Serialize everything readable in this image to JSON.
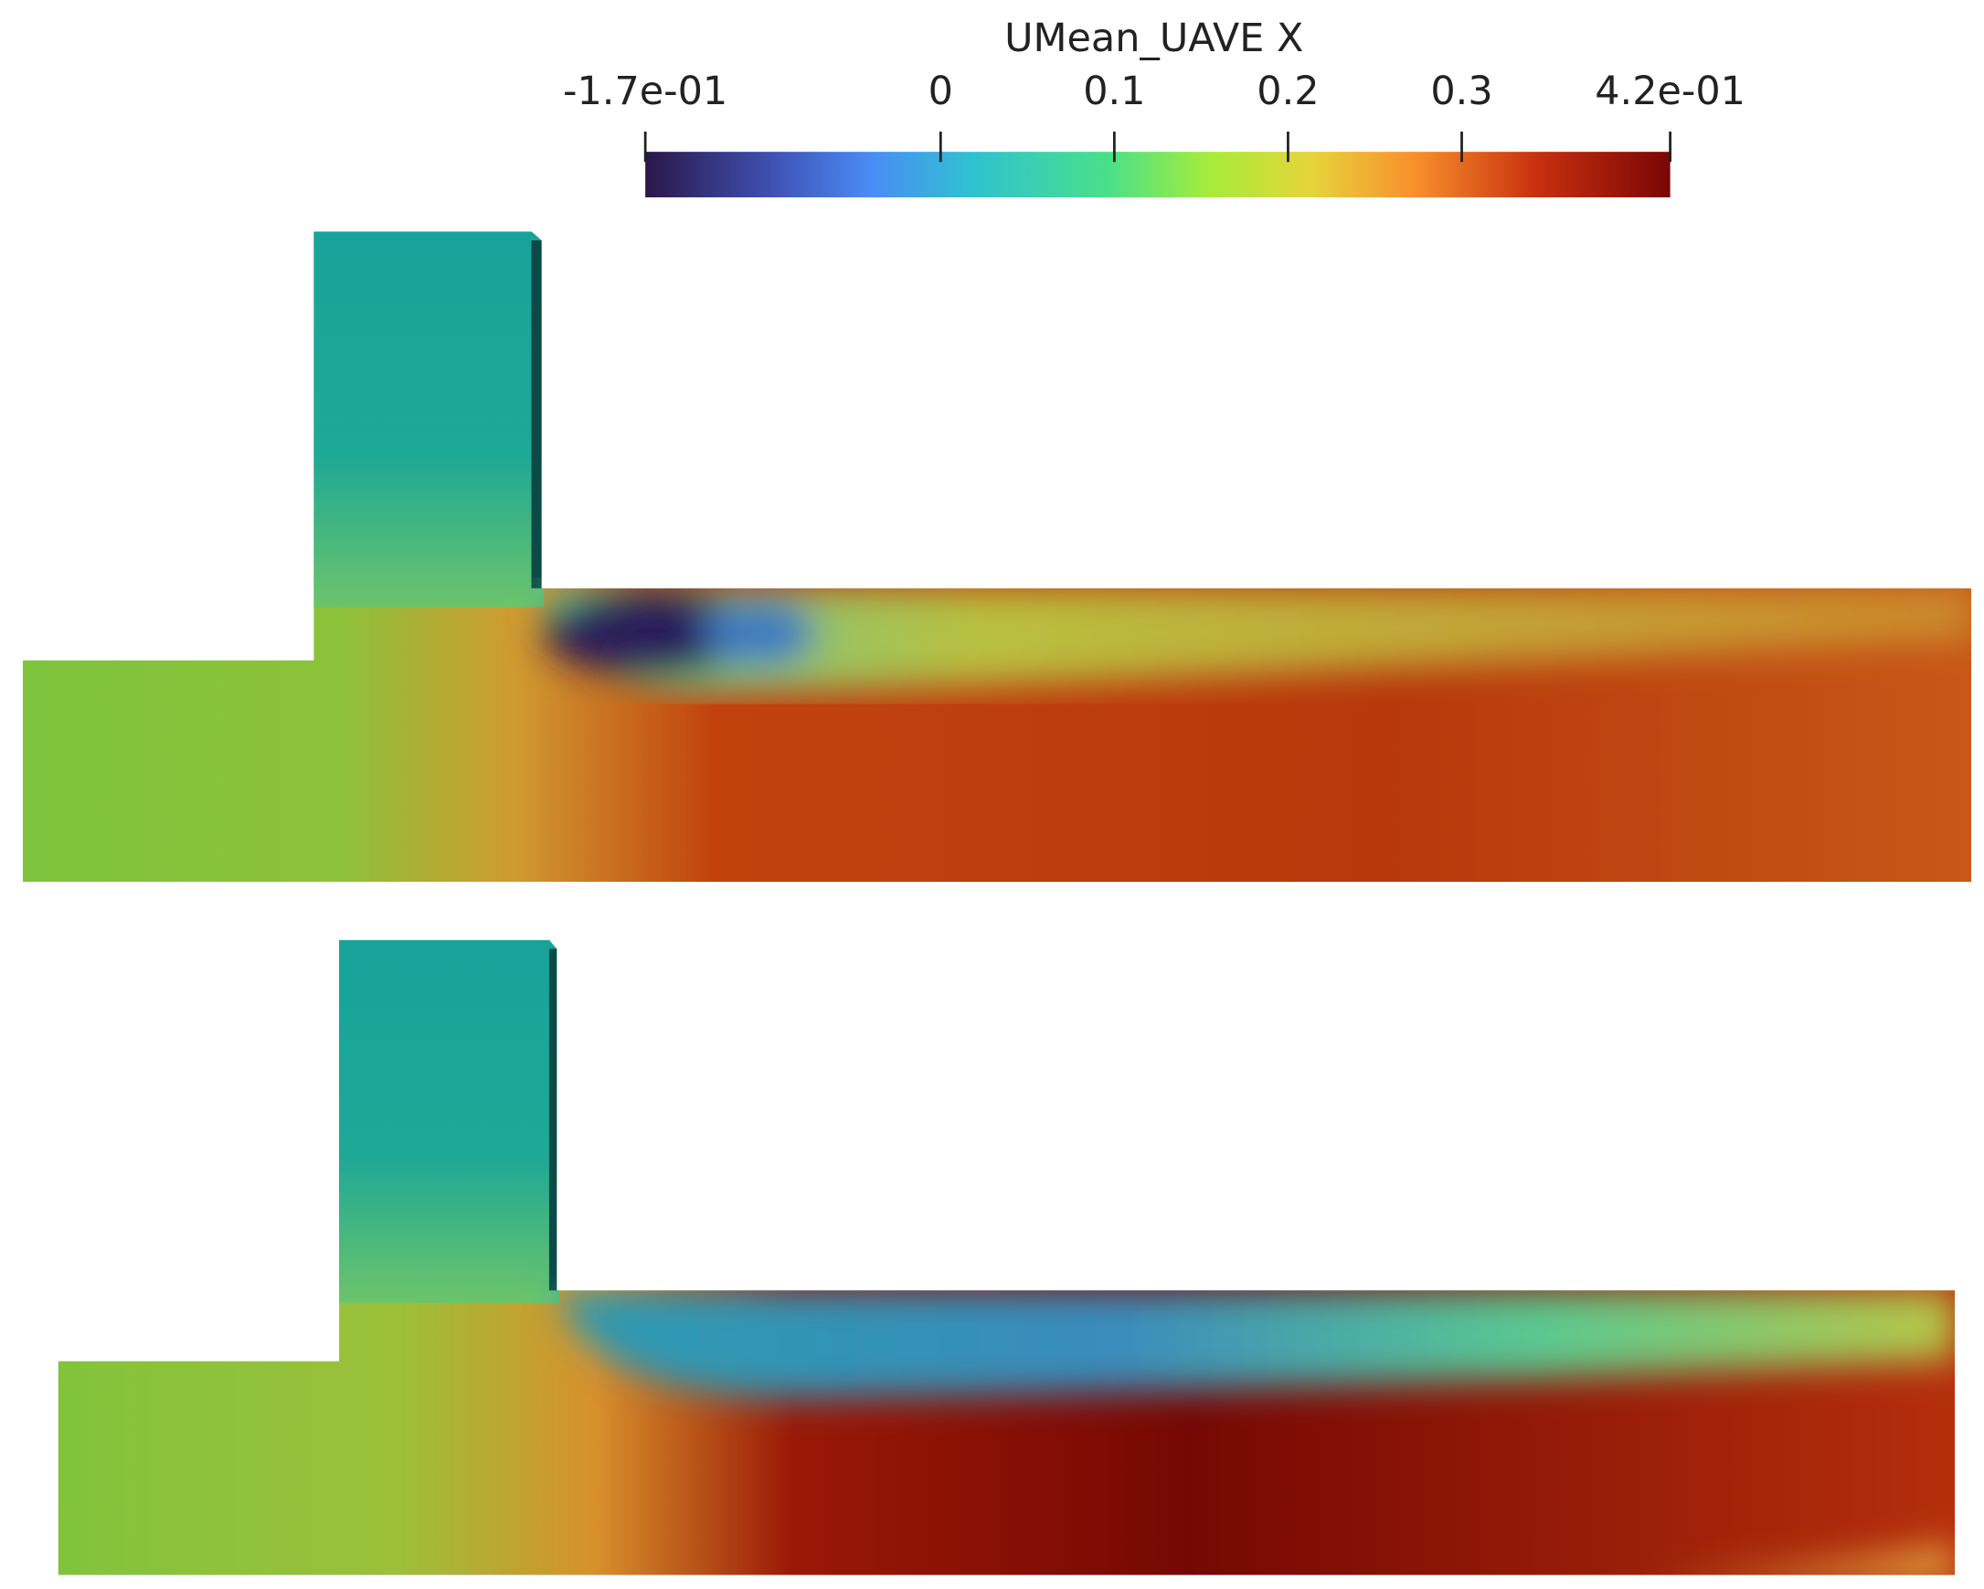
{
  "colorbar": {
    "title": "UMean_UAVE X",
    "lim": [
      -0.17,
      0.42
    ],
    "ticks": [
      {
        "value": -0.17,
        "label": "-1.7e-01"
      },
      0,
      0.1,
      0.2,
      0.3,
      {
        "value": 0.42,
        "label": "4.2e-01"
      }
    ]
  }
}
